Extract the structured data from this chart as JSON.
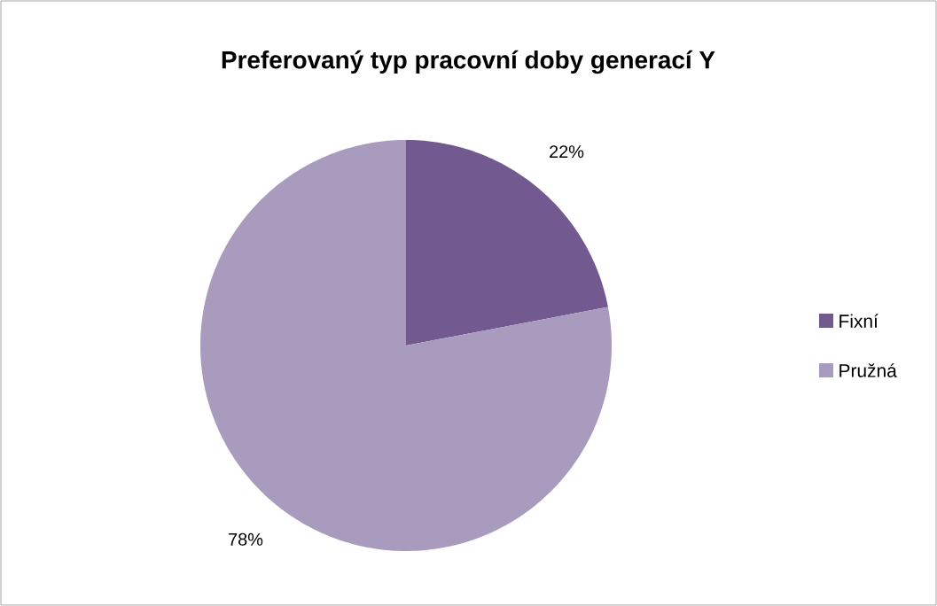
{
  "chart_data": {
    "type": "pie",
    "title": "Preferovaný typ pracovní doby generací Y",
    "categories": [
      "Fixní",
      "Pružná"
    ],
    "values": [
      22,
      78
    ],
    "colors": [
      "#725990",
      "#a99bbe"
    ],
    "value_labels": [
      "22%",
      "78%"
    ],
    "legend": "right"
  }
}
